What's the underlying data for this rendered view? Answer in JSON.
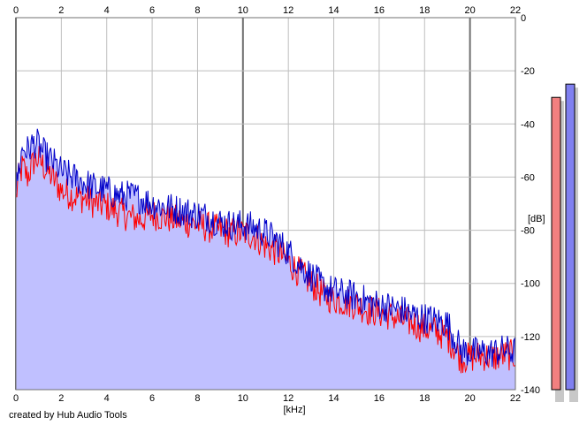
{
  "chart_data": {
    "type": "area",
    "xlabel": "[kHz]",
    "ylabel": "[dB]",
    "xlim": [
      0,
      22
    ],
    "ylim": [
      -140,
      0
    ],
    "x_ticks": [
      0,
      2,
      4,
      6,
      8,
      10,
      12,
      14,
      16,
      18,
      20,
      22
    ],
    "y_ticks": [
      0,
      -20,
      -40,
      -60,
      -80,
      -100,
      -120,
      -140
    ],
    "grid": true,
    "footer": "created by Hub Audio Tools",
    "colors": {
      "fill": "#c0c0ff",
      "red_series": "#ff0000",
      "blue_series": "#0000c8",
      "grid_minor": "#bebebe",
      "grid_major": "#707070",
      "meter_red": "#f28080",
      "meter_blue": "#8080f0"
    },
    "series": [
      {
        "color": "red",
        "x": [
          0,
          0.1,
          0.3,
          0.5,
          0.8,
          1.0,
          1.3,
          1.6,
          2.0,
          2.5,
          3.0,
          3.5,
          4.0,
          4.5,
          5.0,
          5.5,
          6.0,
          6.5,
          7.0,
          7.5,
          8.0,
          8.5,
          9.0,
          9.5,
          10.0,
          10.5,
          11.0,
          11.5,
          12.0,
          12.5,
          13.0,
          13.5,
          14.0,
          14.5,
          15.0,
          15.5,
          16.0,
          16.5,
          17.0,
          17.5,
          18.0,
          18.5,
          19.0,
          19.3,
          19.6,
          20.0,
          20.5,
          21.0,
          21.5,
          22.0
        ],
        "values": [
          -68,
          -61,
          -56,
          -60,
          -54,
          -53,
          -57,
          -60,
          -65,
          -67,
          -68,
          -70,
          -71,
          -73,
          -75,
          -76,
          -74,
          -75,
          -76,
          -77,
          -78,
          -79,
          -80,
          -81,
          -81,
          -82,
          -86,
          -88,
          -92,
          -96,
          -100,
          -104,
          -106,
          -107,
          -108,
          -110,
          -111,
          -112,
          -114,
          -115,
          -117,
          -118,
          -120,
          -124,
          -128,
          -128,
          -127,
          -128,
          -127,
          -127
        ]
      },
      {
        "color": "blue",
        "x": [
          0,
          0.1,
          0.3,
          0.5,
          0.8,
          1.0,
          1.3,
          1.6,
          2.0,
          2.5,
          3.0,
          3.5,
          4.0,
          4.5,
          5.0,
          5.5,
          6.0,
          6.5,
          7.0,
          7.5,
          8.0,
          8.5,
          9.0,
          9.5,
          10.0,
          10.5,
          11.0,
          11.5,
          12.0,
          12.5,
          13.0,
          13.5,
          14.0,
          14.5,
          15.0,
          15.5,
          16.0,
          16.5,
          17.0,
          17.5,
          18.0,
          18.5,
          19.0,
          19.3,
          19.6,
          20.0,
          20.5,
          21.0,
          21.5,
          22.0
        ],
        "values": [
          -66,
          -58,
          -49,
          -50,
          -47,
          -48,
          -52,
          -54,
          -58,
          -60,
          -62,
          -64,
          -65,
          -67,
          -67,
          -68,
          -70,
          -71,
          -72,
          -73,
          -74,
          -75,
          -77,
          -78,
          -78,
          -79,
          -81,
          -84,
          -88,
          -93,
          -97,
          -101,
          -103,
          -104,
          -105,
          -107,
          -108,
          -109,
          -110,
          -112,
          -113,
          -114,
          -115,
          -120,
          -125,
          -126,
          -126,
          -126,
          -125,
          -126
        ]
      }
    ],
    "meters": {
      "red_level_db": -30,
      "blue_level_db": -25
    }
  }
}
